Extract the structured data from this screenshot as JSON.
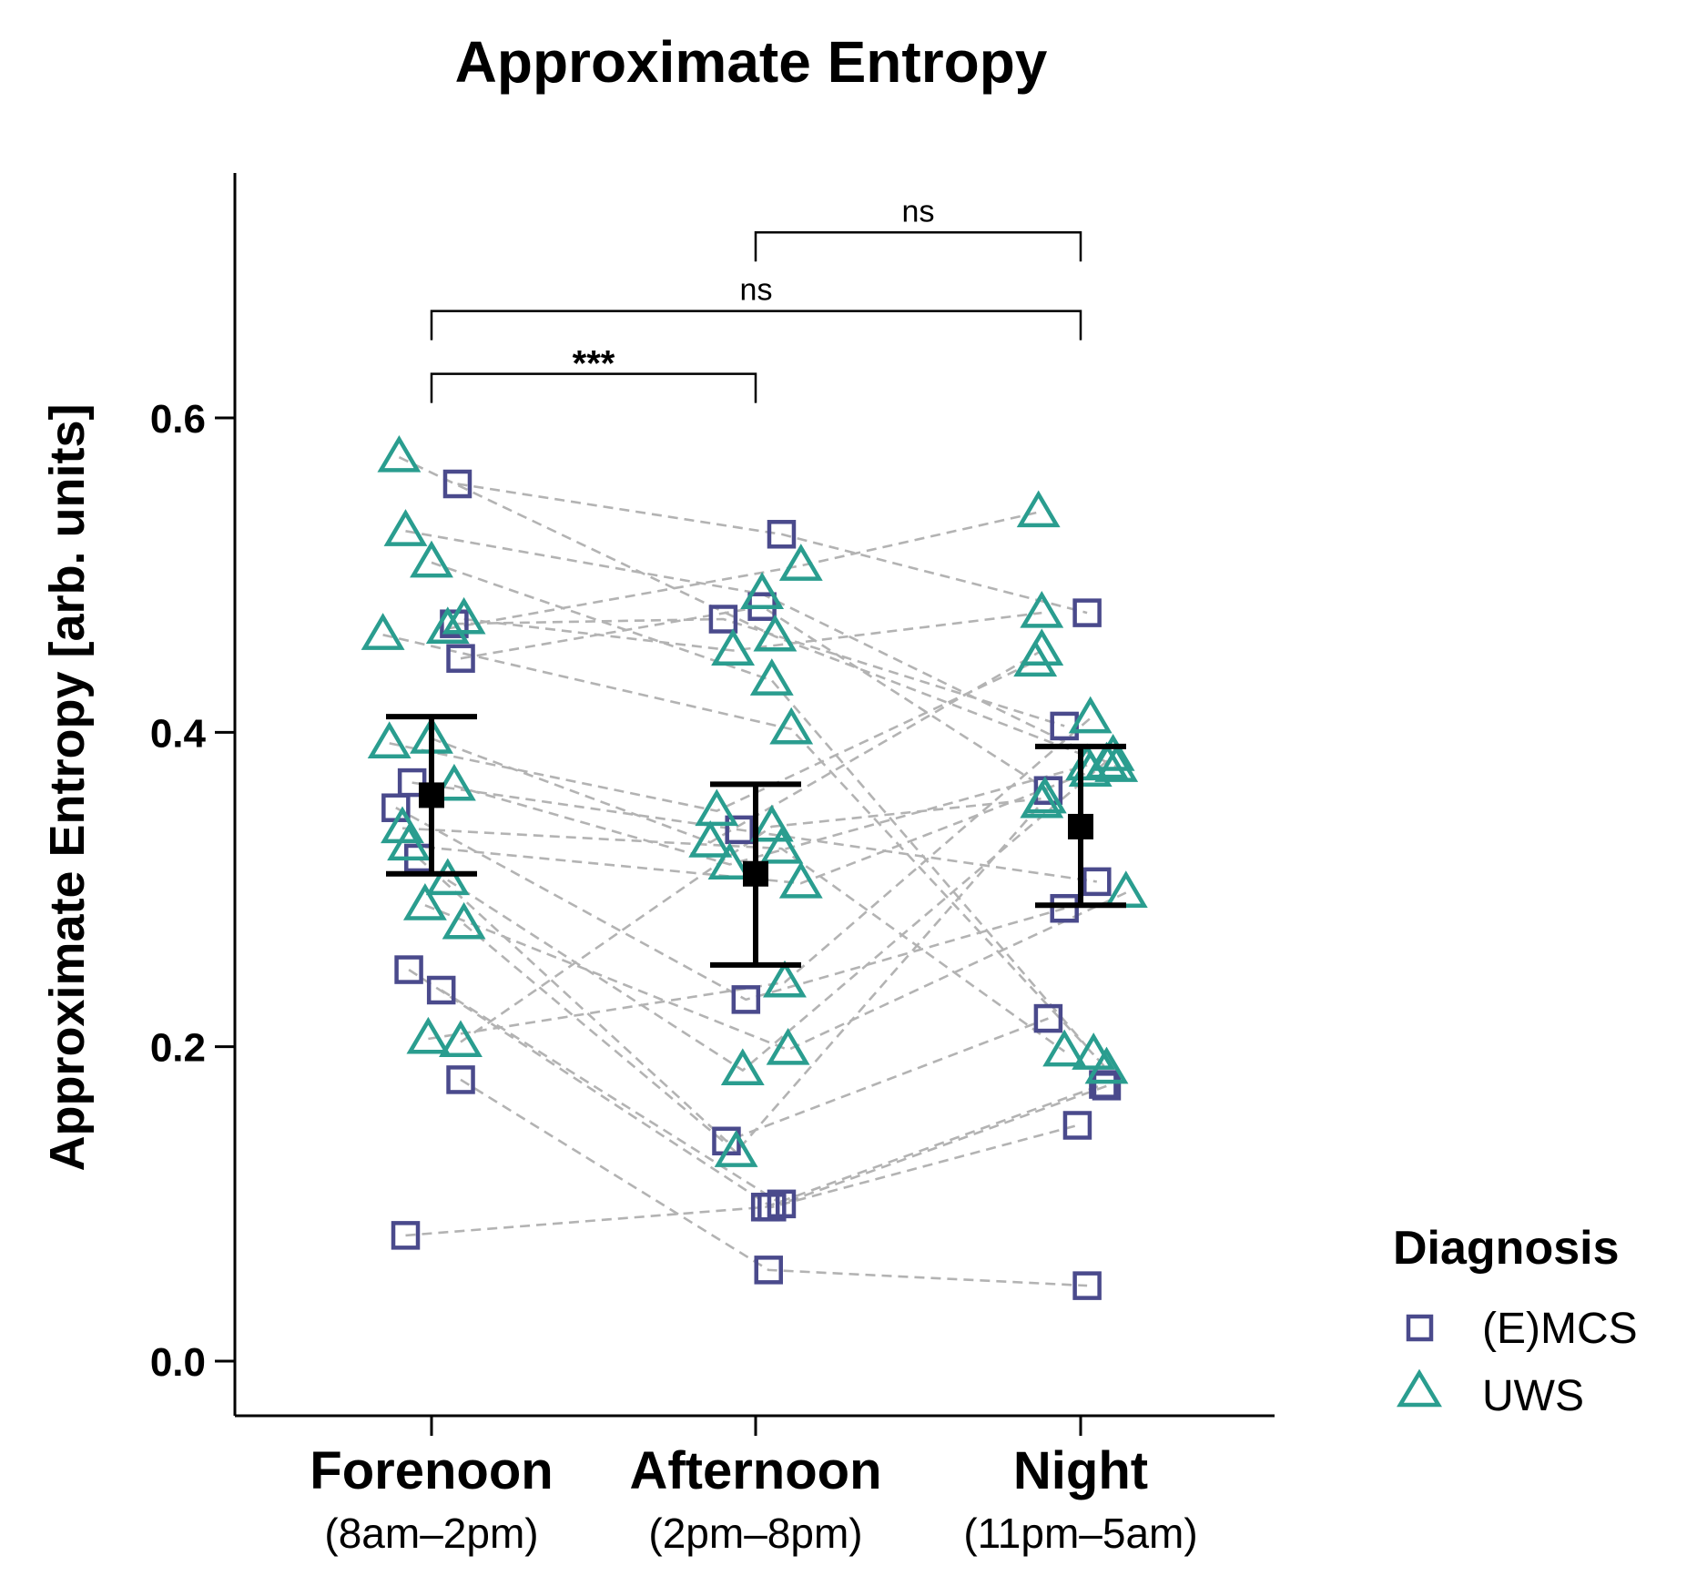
{
  "chart_data": {
    "type": "scatter",
    "title": "Approximate Entropy",
    "xlabel": "",
    "ylabel": "Approximate Entropy [arb. units]",
    "ylim": [
      -0.03,
      0.76
    ],
    "yticks": [
      0.0,
      0.2,
      0.4,
      0.6
    ],
    "ytick_labels": [
      "0.0",
      "0.2",
      "0.4",
      "0.6"
    ],
    "categories": [
      {
        "label": "Forenoon",
        "sublabel": "(8am–2pm)"
      },
      {
        "label": "Afternoon",
        "sublabel": "(2pm–8pm)"
      },
      {
        "label": "Night",
        "sublabel": "(11pm–5am)"
      }
    ],
    "legend": {
      "title": "Diagnosis",
      "position": "right",
      "items": [
        {
          "label": "(E)MCS",
          "marker": "square",
          "color": "#4a4a8c"
        },
        {
          "label": "UWS",
          "marker": "triangle",
          "color": "#2a9d8f"
        }
      ]
    },
    "summary": [
      {
        "category": 0,
        "mean": 0.36,
        "lower": 0.31,
        "upper": 0.41
      },
      {
        "category": 1,
        "mean": 0.31,
        "lower": 0.252,
        "upper": 0.367
      },
      {
        "category": 2,
        "mean": 0.34,
        "lower": 0.29,
        "upper": 0.391
      }
    ],
    "significance": [
      {
        "from": 0,
        "to": 1,
        "label": "***",
        "y": 0.628
      },
      {
        "from": 0,
        "to": 2,
        "label": "ns",
        "y": 0.668
      },
      {
        "from": 1,
        "to": 2,
        "label": "ns",
        "y": 0.718
      }
    ],
    "series": [
      {
        "name": "(E)MCS",
        "marker": "square",
        "color": "#4a4a8c",
        "subjects": [
          {
            "values": [
              0.558,
              0.526,
              0.476
            ],
            "jitter": [
              0.08,
              0.08,
              0.02
            ]
          },
          {
            "values": [
              0.469,
              0.472,
              0.404
            ],
            "jitter": [
              0.07,
              -0.1,
              -0.05
            ]
          },
          {
            "values": [
              0.447,
              0.48,
              0.363
            ],
            "jitter": [
              0.09,
              0.02,
              -0.1
            ]
          },
          {
            "values": [
              0.368,
              0.338,
              0.305
            ],
            "jitter": [
              -0.06,
              -0.05,
              0.05
            ]
          },
          {
            "values": [
              0.352,
              0.23,
              0.288
            ],
            "jitter": [
              -0.11,
              -0.03,
              -0.05
            ]
          },
          {
            "values": [
              0.32,
              0.14,
              0.218
            ],
            "jitter": [
              -0.04,
              -0.09,
              -0.1
            ]
          },
          {
            "values": [
              0.249,
              0.098,
              0.15
            ],
            "jitter": [
              -0.07,
              0.05,
              -0.01
            ]
          },
          {
            "values": [
              0.236,
              0.1,
              0.175
            ],
            "jitter": [
              0.03,
              0.08,
              0.08
            ]
          },
          {
            "values": [
              0.179,
              0.058,
              0.048
            ],
            "jitter": [
              0.09,
              0.04,
              0.02
            ]
          },
          {
            "values": [
              0.08,
              0.098,
              0.176
            ],
            "jitter": [
              -0.08,
              0.03,
              0.07
            ]
          }
        ]
      },
      {
        "name": "UWS",
        "marker": "triangle",
        "color": "#2a9d8f",
        "subjects": [
          {
            "values": [
              0.575,
              0.461,
              0.38
            ],
            "jitter": [
              -0.1,
              0.06,
              0.08
            ]
          },
          {
            "values": [
              0.528,
              0.488,
              0.378
            ],
            "jitter": [
              -0.08,
              0.02,
              0.11
            ]
          },
          {
            "values": [
              0.508,
              0.433,
              0.195
            ],
            "jitter": [
              0.0,
              0.05,
              0.04
            ]
          },
          {
            "values": [
              0.466,
              0.506,
              0.54
            ],
            "jitter": [
              0.05,
              0.14,
              -0.13
            ]
          },
          {
            "values": [
              0.472,
              0.452,
              0.476
            ],
            "jitter": [
              0.1,
              -0.07,
              -0.12
            ]
          },
          {
            "values": [
              0.462,
              0.402,
              0.186
            ],
            "jitter": [
              -0.15,
              0.11,
              0.08
            ]
          },
          {
            "values": [
              0.393,
              0.35,
              0.445
            ],
            "jitter": [
              -0.13,
              -0.12,
              -0.14
            ]
          },
          {
            "values": [
              0.396,
              0.33,
              0.452
            ],
            "jitter": [
              0.0,
              -0.14,
              -0.12
            ]
          },
          {
            "values": [
              0.366,
              0.316,
              0.379
            ],
            "jitter": [
              0.07,
              -0.08,
              0.02
            ]
          },
          {
            "values": [
              0.339,
              0.326,
              0.197
            ],
            "jitter": [
              -0.09,
              0.08,
              -0.05
            ]
          },
          {
            "values": [
              0.328,
              0.304,
              0.375
            ],
            "jitter": [
              -0.07,
              0.14,
              0.03
            ]
          },
          {
            "values": [
              0.306,
              0.185,
              0.385
            ],
            "jitter": [
              0.05,
              -0.04,
              0.1
            ]
          },
          {
            "values": [
              0.29,
              0.198,
              0.298
            ],
            "jitter": [
              -0.02,
              0.1,
              0.14
            ]
          },
          {
            "values": [
              0.278,
              0.133,
              0.355
            ],
            "jitter": [
              0.1,
              -0.06,
              -0.12
            ]
          },
          {
            "values": [
              0.205,
              0.241,
              0.409
            ],
            "jitter": [
              -0.01,
              0.09,
              0.03
            ]
          },
          {
            "values": [
              0.203,
              0.34,
              0.358
            ],
            "jitter": [
              0.09,
              0.05,
              -0.11
            ]
          }
        ]
      }
    ]
  }
}
